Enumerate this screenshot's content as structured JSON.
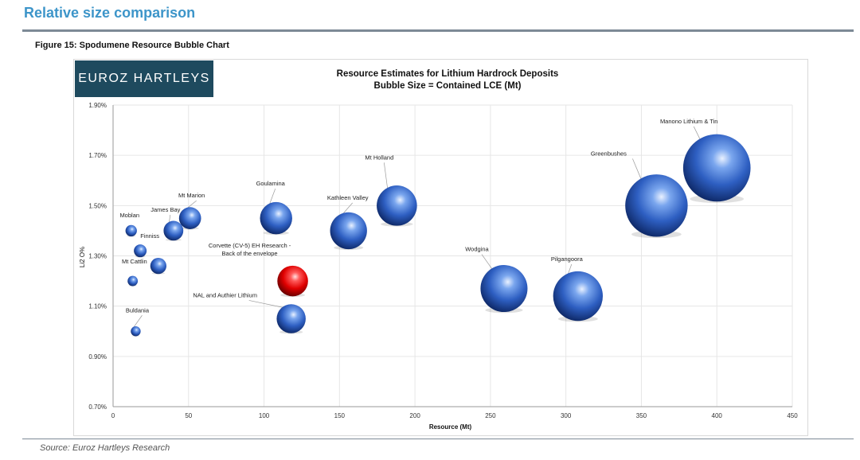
{
  "header": {
    "section_title": "Relative size comparison",
    "figure_caption": "Figure 15:  Spodumene Resource Bubble Chart",
    "logo_text": "EUROZ HARTLEYS"
  },
  "footer": {
    "source": "Source:  Euroz Hartleys Research"
  },
  "colors": {
    "section_title": "#3d95c9",
    "logo_bg": "#1e4a5e",
    "bubble_blue": "#2e5fc2",
    "bubble_red": "#e00000"
  },
  "chart_data": {
    "type": "scatter",
    "title": "Resource Estimates for Lithium Hardrock Deposits",
    "subtitle": "Bubble Size = Contained LCE (Mt)",
    "xlabel": "Resource (Mt)",
    "ylabel": "Li2 O%",
    "xlim": [
      0,
      450
    ],
    "ylim": [
      0.7,
      1.9
    ],
    "xticks": [
      "0",
      "50",
      "100",
      "150",
      "200",
      "250",
      "300",
      "350",
      "400",
      "450"
    ],
    "yticks": [
      "0.70%",
      "0.90%",
      "1.10%",
      "1.30%",
      "1.50%",
      "1.70%",
      "1.90%"
    ],
    "grid": true,
    "points": [
      {
        "label": "Manono Lithium & Tin",
        "x": 400,
        "y": 1.65,
        "size": 7.0,
        "color": "blue"
      },
      {
        "label": "Greenbushes",
        "x": 360,
        "y": 1.5,
        "size": 6.0,
        "color": "blue"
      },
      {
        "label": "Mt Holland",
        "x": 188,
        "y": 1.5,
        "size": 2.5,
        "color": "blue"
      },
      {
        "label": "Kathleen Valley",
        "x": 156,
        "y": 1.4,
        "size": 2.1,
        "color": "blue"
      },
      {
        "label": "Goulamina",
        "x": 108,
        "y": 1.45,
        "size": 1.6,
        "color": "blue"
      },
      {
        "label": "Mt Marion",
        "x": 51,
        "y": 1.45,
        "size": 0.75,
        "color": "blue"
      },
      {
        "label": "James Bay",
        "x": 40,
        "y": 1.4,
        "size": 0.6,
        "color": "blue"
      },
      {
        "label": "Moblan",
        "x": 12,
        "y": 1.4,
        "size": 0.2,
        "color": "blue"
      },
      {
        "label": "Finniss",
        "x": 18,
        "y": 1.32,
        "size": 0.25,
        "color": "blue"
      },
      {
        "label": "Mt Cattlin",
        "x": 30,
        "y": 1.26,
        "size": 0.4,
        "color": "blue"
      },
      {
        "label": "",
        "x": 13,
        "y": 1.2,
        "size": 0.16,
        "color": "blue"
      },
      {
        "label": "Buldania",
        "x": 15,
        "y": 1.0,
        "size": 0.15,
        "color": "blue"
      },
      {
        "label": "Corvette (CV-5) EH Research - Back of the envelope",
        "x": 119,
        "y": 1.2,
        "size": 1.45,
        "color": "red"
      },
      {
        "label": "NAL and Authier Lithium",
        "x": 118,
        "y": 1.05,
        "size": 1.3,
        "color": "blue"
      },
      {
        "label": "Wodgina",
        "x": 259,
        "y": 1.17,
        "size": 3.4,
        "color": "blue"
      },
      {
        "label": "Pilgangoora",
        "x": 308,
        "y": 1.14,
        "size": 3.8,
        "color": "blue"
      }
    ]
  }
}
